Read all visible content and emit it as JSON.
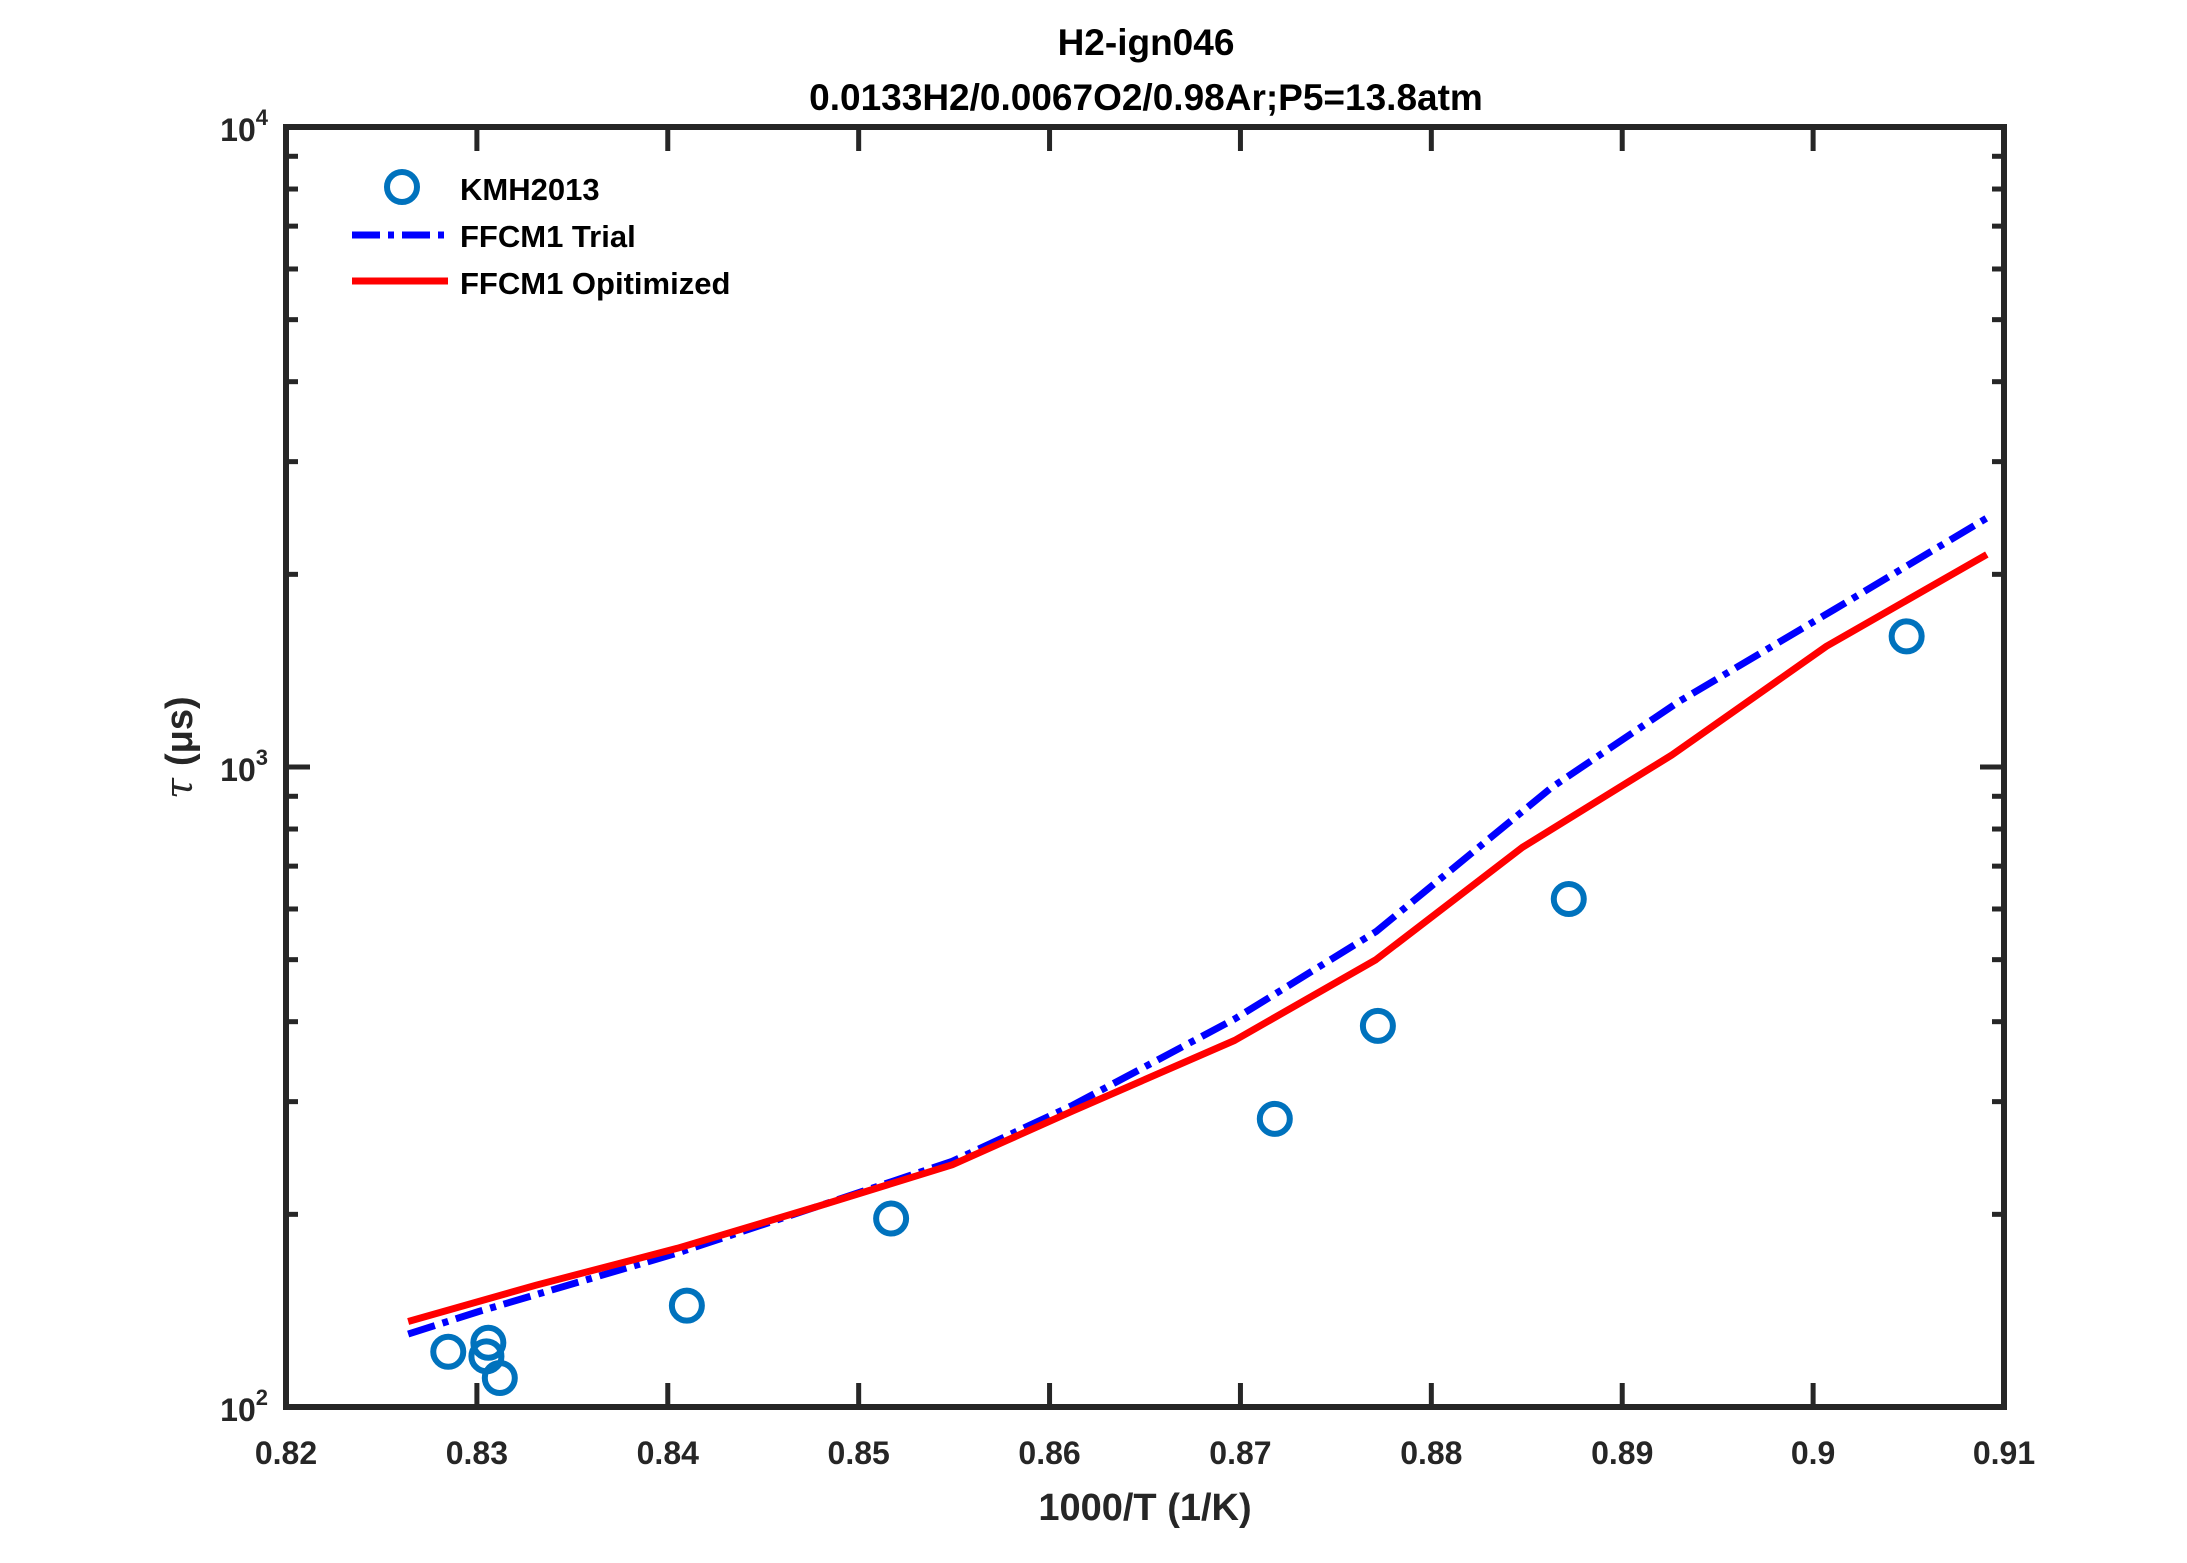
{
  "chart_data": {
    "type": "line",
    "title": "H2-ign046",
    "subtitle": "0.0133H2/0.0067O2/0.98Ar;P5=13.8atm",
    "xlabel": "1000/T (1/K)",
    "ylabel_symbol": "τ",
    "ylabel": "(μs)",
    "xlim": [
      0.82,
      0.91
    ],
    "ylim": [
      100,
      10000
    ],
    "yscale": "log",
    "xticks": [
      "0.82",
      "0.83",
      "0.84",
      "0.85",
      "0.86",
      "0.87",
      "0.88",
      "0.89",
      "0.9",
      "0.91"
    ],
    "xtick_values": [
      0.82,
      0.83,
      0.84,
      0.85,
      0.86,
      0.87,
      0.88,
      0.89,
      0.9,
      0.91
    ],
    "yticks": [
      {
        "base": "10",
        "exp": "2",
        "value": 100
      },
      {
        "base": "10",
        "exp": "3",
        "value": 1000
      },
      {
        "base": "10",
        "exp": "4",
        "value": 10000
      }
    ],
    "grid": false,
    "legend_position": "top-left",
    "series": [
      {
        "name": "KMH2013",
        "style": "markers",
        "color": "#0072BD",
        "x": [
          0.8285,
          0.8306,
          0.8305,
          0.8312,
          0.841,
          0.8517,
          0.8718,
          0.8772,
          0.8872,
          0.9049
        ],
        "y": [
          122,
          126,
          120,
          111,
          144,
          197,
          282,
          394,
          622,
          1600
        ]
      },
      {
        "name": "FFCM1 Trial",
        "style": "dashdot",
        "color": "#0000FF",
        "x": [
          0.8264,
          0.8301,
          0.8405,
          0.8479,
          0.8549,
          0.8612,
          0.8697,
          0.8771,
          0.8863,
          0.893,
          0.9011,
          0.9091
        ],
        "y": [
          130,
          141,
          174,
          206,
          242,
          296,
          404,
          553,
          929,
          1267,
          1762,
          2449
        ]
      },
      {
        "name": "FFCM1 Opitimized",
        "style": "solid",
        "color": "#FF0000",
        "x": [
          0.8264,
          0.8331,
          0.8405,
          0.8479,
          0.8549,
          0.8612,
          0.8697,
          0.8771,
          0.8848,
          0.8926,
          0.9007,
          0.9091
        ],
        "y": [
          136,
          155,
          177,
          206,
          239,
          290,
          374,
          500,
          750,
          1044,
          1544,
          2148
        ]
      }
    ]
  }
}
